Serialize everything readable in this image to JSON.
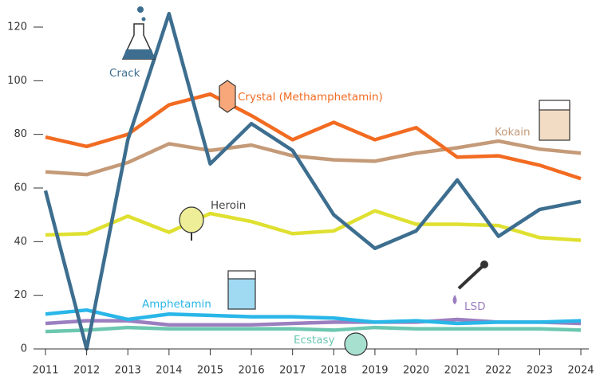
{
  "chart_data": {
    "type": "line",
    "x": [
      2011,
      2012,
      2013,
      2014,
      2015,
      2016,
      2017,
      2018,
      2019,
      2020,
      2021,
      2022,
      2023,
      2024
    ],
    "xlim": [
      2011,
      2024
    ],
    "xticks": [
      2011,
      2012,
      2013,
      2014,
      2015,
      2016,
      2017,
      2018,
      2019,
      2020,
      2021,
      2022,
      2023,
      2024
    ],
    "ylim": [
      0,
      126
    ],
    "yticks": [
      0,
      20,
      40,
      60,
      80,
      100,
      120
    ],
    "series": [
      {
        "name": "Ecstasy",
        "color": "#6cc7b0",
        "values": [
          6.5,
          7,
          8,
          7.5,
          7.5,
          7.5,
          7.5,
          7,
          8,
          7.5,
          7.5,
          7.5,
          7.5,
          7
        ]
      },
      {
        "name": "LSD",
        "color": "#9b7fc0",
        "values": [
          9.5,
          10.5,
          10.5,
          9,
          9,
          9,
          9.5,
          10,
          10,
          10,
          11,
          10,
          10,
          9.5
        ]
      },
      {
        "name": "Amphetamin",
        "color": "#29b6e8",
        "values": [
          13,
          14.5,
          11,
          13,
          12.5,
          12,
          12,
          11.5,
          10,
          10.5,
          9.5,
          10,
          10,
          10.5
        ]
      },
      {
        "name": "Heroin",
        "color": "#dfe030",
        "values": [
          42.5,
          43,
          49.5,
          43.5,
          50.5,
          47.5,
          43,
          44,
          51.5,
          46.5,
          46.5,
          46,
          41.5,
          40.5
        ]
      },
      {
        "name": "Kokain",
        "color": "#c49a78",
        "values": [
          66,
          65,
          69.5,
          76.5,
          74,
          76,
          72,
          70.5,
          70,
          73,
          75,
          77.5,
          74.5,
          73
        ]
      },
      {
        "name": "Crystal (Methamphetamin)",
        "color": "#f26b21",
        "values": [
          79,
          75.5,
          80,
          91,
          95,
          87,
          78,
          84.5,
          78,
          82.5,
          71.5,
          72,
          68.5,
          63.5
        ]
      },
      {
        "name": "Crack",
        "color": "#3d6e8f",
        "values": [
          59,
          0,
          78,
          125,
          69,
          84,
          74,
          50,
          37.5,
          44,
          63,
          42,
          52,
          55
        ]
      }
    ]
  }
}
